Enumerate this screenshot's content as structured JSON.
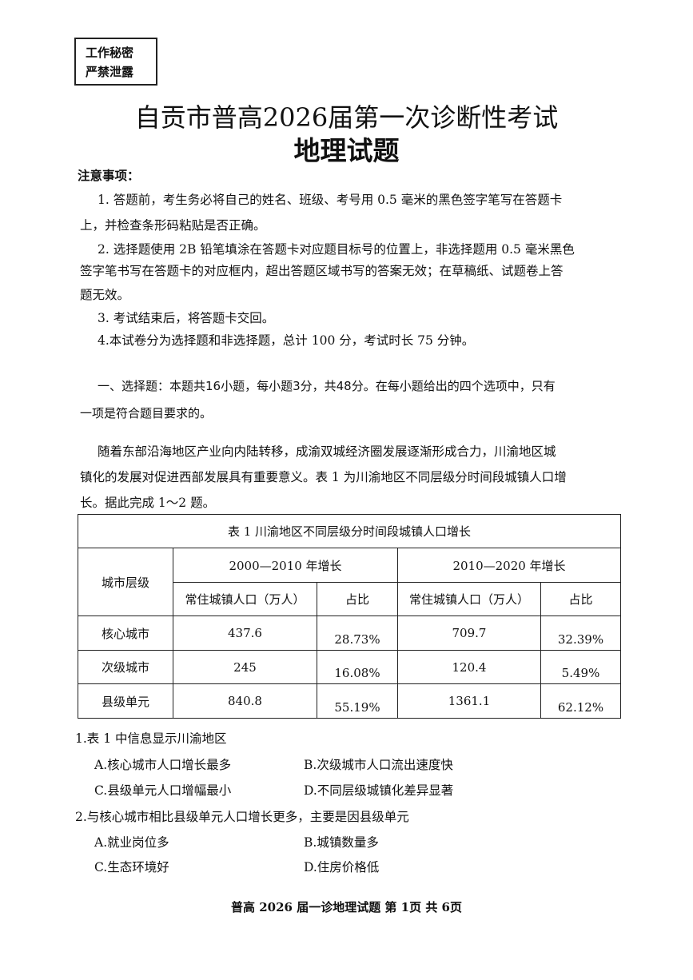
{
  "stamp": {
    "line1": "工作秘密",
    "line2": "严禁泄露"
  },
  "title": "自贡市普高2026届第一次诊断性考试",
  "subtitle": "地理试题",
  "notes": {
    "heading": "注意事项：",
    "lines": [
      "1. 答题前，考生务必将自己的姓名、班级、考号用 0.5 毫米的黑色签字笔写在答题卡",
      "上，并检查条形码粘贴是否正确。",
      "2. 选择题使用 2B 铅笔填涂在答题卡对应题目标号的位置上，非选择题用 0.5 毫米黑色",
      "签字笔书写在答题卡的对应框内，超出答题区域书写的答案无效；在草稿纸、试题卷上答",
      "题无效。",
      "3. 考试结束后，将答题卡交回。",
      "4.本试卷分为选择题和非选择题，总计 100 分，考试时长 75 分钟。"
    ]
  },
  "section": {
    "line1": "一、选择题：本题共16小题，每小题3分，共48分。在每小题给出的四个选项中，只有",
    "line2": "一项是符合题目要求的。"
  },
  "passage": [
    "随着东部沿海地区产业向内陆转移，成渝双城经济圈发展逐渐形成合力，川渝地区城",
    "镇化的发展对促进西部发展具有重要意义。表 1 为川渝地区不同层级分时间段城镇人口增",
    "长。据此完成 1～2 题。"
  ],
  "table": {
    "caption": "表 1 川渝地区不同层级分时间段城镇人口增长",
    "level_header": "城市层级",
    "period1": "2000—2010 年增长",
    "period2": "2010—2020 年增长",
    "pop_header": "常住城镇人口（万人）",
    "share_header": "占比",
    "rows": [
      {
        "level": "核心城市",
        "p1": "437.6",
        "s1": "28.73%",
        "p2": "709.7",
        "s2": "32.39%"
      },
      {
        "level": "次级城市",
        "p1": "245",
        "s1": "16.08%",
        "p2": "120.4",
        "s2": "5.49%"
      },
      {
        "level": "县级单元",
        "p1": "840.8",
        "s1": "55.19%",
        "p2": "1361.1",
        "s2": "62.12%"
      }
    ]
  },
  "questions": [
    {
      "stem": "1.表 1 中信息显示川渝地区",
      "a": "A.核心城市人口增长最多",
      "b": "B.次级城市人口流出速度快",
      "c": "C.县级单元人口增幅最小",
      "d": "D.不同层级城镇化差异显著"
    },
    {
      "stem": "2.与核心城市相比县级单元人口增长更多，主要是因县级单元",
      "a": "A.就业岗位多",
      "b": "B.城镇数量多",
      "c": "C.生态环境好",
      "d": "D.住房价格低"
    }
  ],
  "footer": "普高 2026 届一诊地理试题 第 1页 共 6页"
}
